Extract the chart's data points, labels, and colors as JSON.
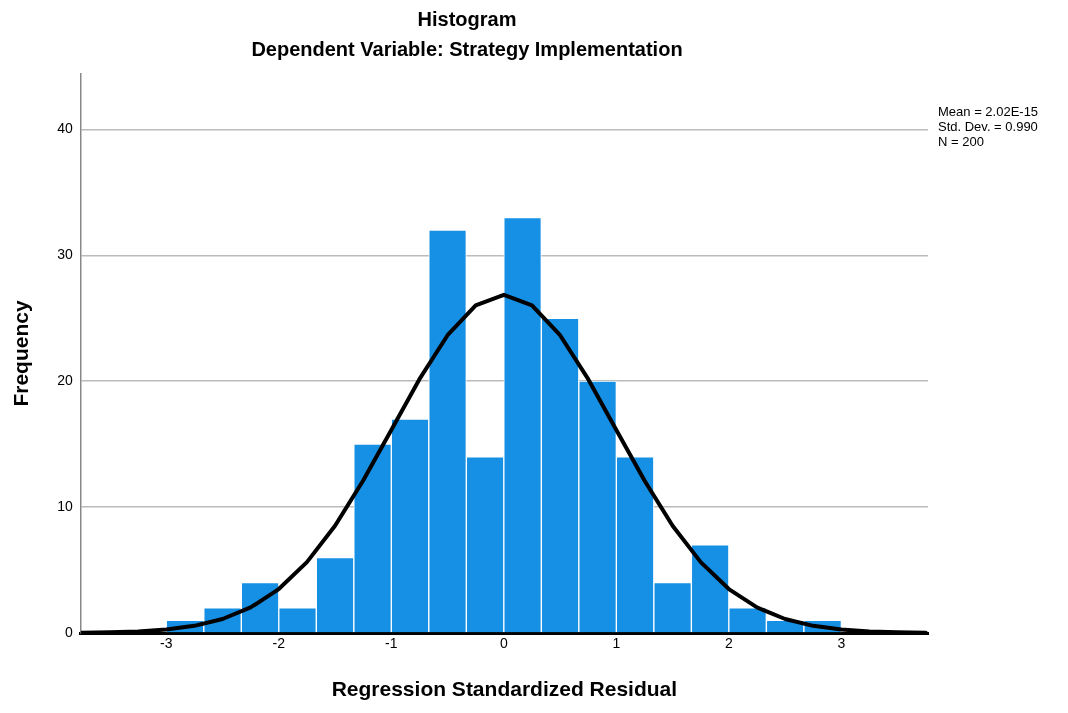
{
  "chart_data": {
    "type": "histogram",
    "title": "Histogram",
    "subtitle": "Dependent Variable: Strategy Implementation",
    "xlabel": "Regression Standardized Residual",
    "ylabel": "Frequency",
    "bins": [
      -3,
      -2.667,
      -2.333,
      -2,
      -1.667,
      -1.333,
      -1,
      -0.667,
      -0.333,
      0,
      0.333,
      0.667,
      1,
      1.333,
      1.667,
      2,
      2.333,
      2.667,
      3
    ],
    "values": [
      1,
      2,
      4,
      2,
      6,
      15,
      17,
      32,
      14,
      33,
      25,
      20,
      14,
      4,
      7,
      2,
      1,
      1
    ],
    "color": "#1590e4",
    "series": [
      {
        "type": "line",
        "color": "#000000",
        "x": [
          -3.75,
          -3.5,
          -3.25,
          -3,
          -2.75,
          -2.5,
          -2.25,
          -2,
          -1.75,
          -1.5,
          -1.25,
          -1,
          -0.75,
          -0.5,
          -0.25,
          0,
          0.25,
          0.5,
          0.75,
          1,
          1.25,
          1.5,
          1.75,
          2,
          2.25,
          2.5,
          2.75,
          3,
          3.25,
          3.5,
          3.75
        ],
        "values": [
          0.02,
          0.05,
          0.12,
          0.27,
          0.57,
          1.11,
          2.03,
          3.49,
          5.63,
          8.52,
          12.11,
          16.13,
          20.16,
          23.65,
          26.02,
          26.86,
          26.02,
          23.65,
          20.16,
          16.13,
          12.11,
          8.52,
          5.63,
          3.49,
          2.03,
          1.11,
          0.57,
          0.27,
          0.12,
          0.05,
          0.02
        ]
      }
    ],
    "xlim": [
      -3.76,
      3.77
    ],
    "xticks": [
      -3,
      -2,
      -1,
      0,
      1,
      2,
      3
    ],
    "ylim": [
      0,
      44.4
    ],
    "yticks": [
      0,
      10,
      20,
      30,
      40
    ],
    "grid": "y",
    "annotations": [
      "Mean = 2.02E-15",
      "Std. Dev. = 0.990",
      "N = 200"
    ]
  }
}
